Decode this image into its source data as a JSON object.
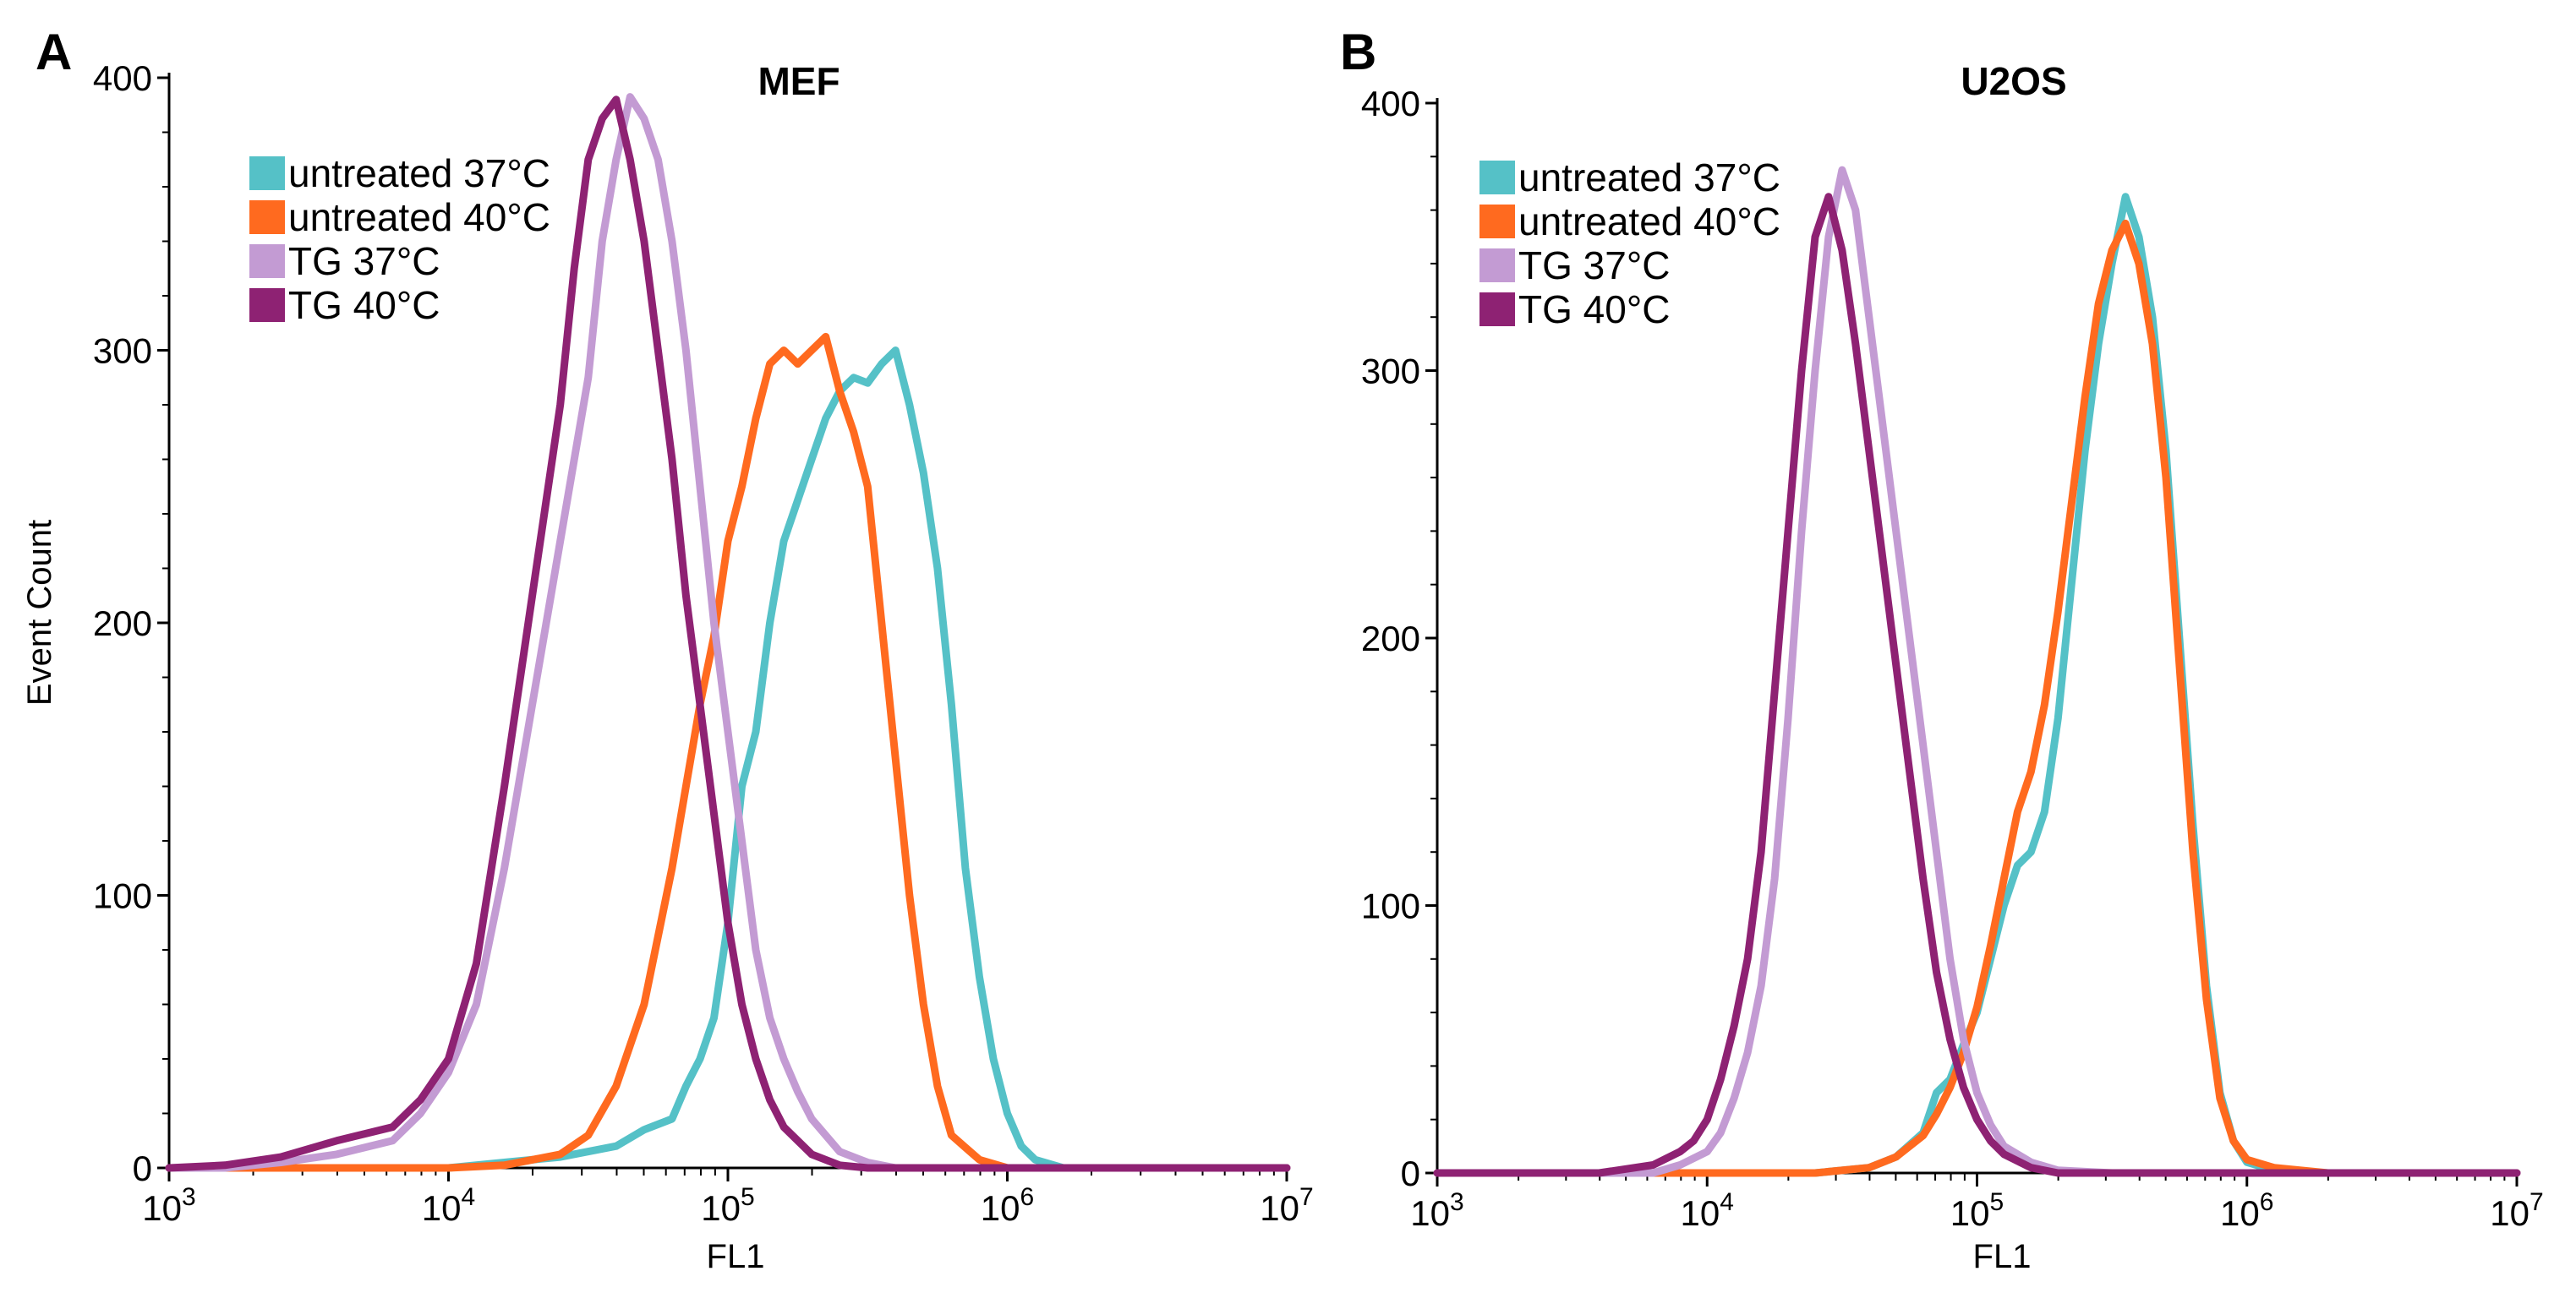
{
  "chart_data": [
    {
      "panel": "A",
      "type": "line",
      "title": "MEF",
      "xlabel": "FL1",
      "ylabel": "Event Count",
      "x_scale": "log",
      "xlim": [
        1000,
        10000000
      ],
      "ylim": [
        0,
        400
      ],
      "x_ticks": [
        {
          "base": "10",
          "exp": "3"
        },
        {
          "base": "10",
          "exp": "4"
        },
        {
          "base": "10",
          "exp": "5"
        },
        {
          "base": "10",
          "exp": "6"
        },
        {
          "base": "10",
          "exp": "7"
        }
      ],
      "y_ticks": [
        "0",
        "100",
        "200",
        "300",
        "400"
      ],
      "legend_position": "top-left",
      "series": [
        {
          "name": "untreated 37°C",
          "color": "#55c1c7",
          "points": [
            [
              3.0,
              0
            ],
            [
              4.0,
              0
            ],
            [
              4.2,
              2
            ],
            [
              4.4,
              4
            ],
            [
              4.6,
              8
            ],
            [
              4.7,
              14
            ],
            [
              4.8,
              18
            ],
            [
              4.85,
              30
            ],
            [
              4.9,
              40
            ],
            [
              4.95,
              55
            ],
            [
              5.0,
              90
            ],
            [
              5.05,
              140
            ],
            [
              5.1,
              160
            ],
            [
              5.15,
              200
            ],
            [
              5.2,
              230
            ],
            [
              5.25,
              245
            ],
            [
              5.3,
              260
            ],
            [
              5.35,
              275
            ],
            [
              5.4,
              285
            ],
            [
              5.45,
              290
            ],
            [
              5.5,
              288
            ],
            [
              5.55,
              295
            ],
            [
              5.6,
              300
            ],
            [
              5.65,
              280
            ],
            [
              5.7,
              255
            ],
            [
              5.75,
              220
            ],
            [
              5.8,
              170
            ],
            [
              5.85,
              110
            ],
            [
              5.9,
              70
            ],
            [
              5.95,
              40
            ],
            [
              6.0,
              20
            ],
            [
              6.05,
              8
            ],
            [
              6.1,
              3
            ],
            [
              6.2,
              0
            ],
            [
              7.0,
              0
            ]
          ]
        },
        {
          "name": "untreated 40°C",
          "color": "#ff6a1f",
          "points": [
            [
              3.0,
              0
            ],
            [
              4.0,
              0
            ],
            [
              4.2,
              1
            ],
            [
              4.4,
              5
            ],
            [
              4.5,
              12
            ],
            [
              4.6,
              30
            ],
            [
              4.7,
              60
            ],
            [
              4.8,
              110
            ],
            [
              4.85,
              140
            ],
            [
              4.9,
              170
            ],
            [
              4.95,
              195
            ],
            [
              5.0,
              230
            ],
            [
              5.05,
              250
            ],
            [
              5.1,
              275
            ],
            [
              5.15,
              295
            ],
            [
              5.2,
              300
            ],
            [
              5.25,
              295
            ],
            [
              5.3,
              300
            ],
            [
              5.35,
              305
            ],
            [
              5.4,
              285
            ],
            [
              5.45,
              270
            ],
            [
              5.5,
              250
            ],
            [
              5.55,
              200
            ],
            [
              5.6,
              150
            ],
            [
              5.65,
              100
            ],
            [
              5.7,
              60
            ],
            [
              5.75,
              30
            ],
            [
              5.8,
              12
            ],
            [
              5.9,
              3
            ],
            [
              6.0,
              0
            ],
            [
              7.0,
              0
            ]
          ]
        },
        {
          "name": "TG 37°C",
          "color": "#c39bd3",
          "points": [
            [
              3.0,
              0
            ],
            [
              3.2,
              0
            ],
            [
              3.4,
              2
            ],
            [
              3.6,
              5
            ],
            [
              3.8,
              10
            ],
            [
              3.9,
              20
            ],
            [
              4.0,
              35
            ],
            [
              4.1,
              60
            ],
            [
              4.2,
              110
            ],
            [
              4.3,
              170
            ],
            [
              4.4,
              230
            ],
            [
              4.5,
              290
            ],
            [
              4.55,
              340
            ],
            [
              4.6,
              370
            ],
            [
              4.65,
              393
            ],
            [
              4.7,
              385
            ],
            [
              4.75,
              370
            ],
            [
              4.8,
              340
            ],
            [
              4.85,
              300
            ],
            [
              4.9,
              250
            ],
            [
              4.95,
              200
            ],
            [
              5.0,
              160
            ],
            [
              5.05,
              120
            ],
            [
              5.1,
              80
            ],
            [
              5.15,
              55
            ],
            [
              5.2,
              40
            ],
            [
              5.25,
              28
            ],
            [
              5.3,
              18
            ],
            [
              5.4,
              6
            ],
            [
              5.5,
              2
            ],
            [
              5.6,
              0
            ],
            [
              7.0,
              0
            ]
          ]
        },
        {
          "name": "TG 40°C",
          "color": "#8e2273",
          "points": [
            [
              3.0,
              0
            ],
            [
              3.2,
              1
            ],
            [
              3.4,
              4
            ],
            [
              3.6,
              10
            ],
            [
              3.8,
              15
            ],
            [
              3.9,
              25
            ],
            [
              4.0,
              40
            ],
            [
              4.1,
              75
            ],
            [
              4.2,
              140
            ],
            [
              4.3,
              210
            ],
            [
              4.4,
              280
            ],
            [
              4.45,
              330
            ],
            [
              4.5,
              370
            ],
            [
              4.55,
              385
            ],
            [
              4.6,
              392
            ],
            [
              4.65,
              370
            ],
            [
              4.7,
              340
            ],
            [
              4.75,
              300
            ],
            [
              4.8,
              260
            ],
            [
              4.85,
              210
            ],
            [
              4.9,
              170
            ],
            [
              4.95,
              130
            ],
            [
              5.0,
              90
            ],
            [
              5.05,
              60
            ],
            [
              5.1,
              40
            ],
            [
              5.15,
              25
            ],
            [
              5.2,
              15
            ],
            [
              5.3,
              5
            ],
            [
              5.4,
              1
            ],
            [
              5.5,
              0
            ],
            [
              7.0,
              0
            ]
          ]
        }
      ]
    },
    {
      "panel": "B",
      "type": "line",
      "title": "U2OS",
      "xlabel": "FL1",
      "ylabel": "",
      "x_scale": "log",
      "xlim": [
        1000,
        10000000
      ],
      "ylim": [
        0,
        400
      ],
      "x_ticks": [
        {
          "base": "10",
          "exp": "3"
        },
        {
          "base": "10",
          "exp": "4"
        },
        {
          "base": "10",
          "exp": "5"
        },
        {
          "base": "10",
          "exp": "6"
        },
        {
          "base": "10",
          "exp": "7"
        }
      ],
      "y_ticks": [
        "0",
        "100",
        "200",
        "300",
        "400"
      ],
      "legend_position": "top-left",
      "series": [
        {
          "name": "untreated 37°C",
          "color": "#55c1c7",
          "points": [
            [
              3.0,
              0
            ],
            [
              4.4,
              0
            ],
            [
              4.6,
              2
            ],
            [
              4.7,
              6
            ],
            [
              4.8,
              15
            ],
            [
              4.85,
              30
            ],
            [
              4.9,
              35
            ],
            [
              4.95,
              48
            ],
            [
              5.0,
              60
            ],
            [
              5.05,
              80
            ],
            [
              5.1,
              100
            ],
            [
              5.15,
              115
            ],
            [
              5.2,
              120
            ],
            [
              5.25,
              135
            ],
            [
              5.3,
              170
            ],
            [
              5.35,
              220
            ],
            [
              5.4,
              270
            ],
            [
              5.45,
              310
            ],
            [
              5.5,
              340
            ],
            [
              5.55,
              365
            ],
            [
              5.6,
              350
            ],
            [
              5.65,
              320
            ],
            [
              5.7,
              270
            ],
            [
              5.75,
              200
            ],
            [
              5.8,
              130
            ],
            [
              5.85,
              70
            ],
            [
              5.9,
              30
            ],
            [
              5.95,
              12
            ],
            [
              6.0,
              4
            ],
            [
              6.1,
              1
            ],
            [
              6.3,
              0
            ],
            [
              7.0,
              0
            ]
          ]
        },
        {
          "name": "untreated 40°C",
          "color": "#ff6a1f",
          "points": [
            [
              3.0,
              0
            ],
            [
              4.4,
              0
            ],
            [
              4.6,
              2
            ],
            [
              4.7,
              6
            ],
            [
              4.8,
              14
            ],
            [
              4.85,
              22
            ],
            [
              4.9,
              32
            ],
            [
              4.95,
              45
            ],
            [
              5.0,
              62
            ],
            [
              5.05,
              85
            ],
            [
              5.1,
              110
            ],
            [
              5.15,
              135
            ],
            [
              5.2,
              150
            ],
            [
              5.25,
              175
            ],
            [
              5.3,
              210
            ],
            [
              5.35,
              250
            ],
            [
              5.4,
              290
            ],
            [
              5.45,
              325
            ],
            [
              5.5,
              345
            ],
            [
              5.55,
              355
            ],
            [
              5.6,
              340
            ],
            [
              5.65,
              310
            ],
            [
              5.7,
              260
            ],
            [
              5.75,
              190
            ],
            [
              5.8,
              120
            ],
            [
              5.85,
              65
            ],
            [
              5.9,
              28
            ],
            [
              5.95,
              12
            ],
            [
              6.0,
              5
            ],
            [
              6.1,
              2
            ],
            [
              6.3,
              0
            ],
            [
              7.0,
              0
            ]
          ]
        },
        {
          "name": "TG 37°C",
          "color": "#c39bd3",
          "points": [
            [
              3.0,
              0
            ],
            [
              3.8,
              0
            ],
            [
              3.9,
              3
            ],
            [
              4.0,
              8
            ],
            [
              4.05,
              15
            ],
            [
              4.1,
              28
            ],
            [
              4.15,
              45
            ],
            [
              4.2,
              70
            ],
            [
              4.25,
              110
            ],
            [
              4.3,
              170
            ],
            [
              4.35,
              240
            ],
            [
              4.4,
              300
            ],
            [
              4.45,
              350
            ],
            [
              4.5,
              375
            ],
            [
              4.55,
              360
            ],
            [
              4.6,
              320
            ],
            [
              4.65,
              280
            ],
            [
              4.7,
              240
            ],
            [
              4.75,
              200
            ],
            [
              4.8,
              160
            ],
            [
              4.85,
              120
            ],
            [
              4.9,
              80
            ],
            [
              4.95,
              50
            ],
            [
              5.0,
              30
            ],
            [
              5.05,
              18
            ],
            [
              5.1,
              10
            ],
            [
              5.2,
              4
            ],
            [
              5.3,
              1
            ],
            [
              5.5,
              0
            ],
            [
              7.0,
              0
            ]
          ]
        },
        {
          "name": "TG 40°C",
          "color": "#8e2273",
          "points": [
            [
              3.0,
              0
            ],
            [
              3.6,
              0
            ],
            [
              3.8,
              3
            ],
            [
              3.9,
              8
            ],
            [
              3.95,
              12
            ],
            [
              4.0,
              20
            ],
            [
              4.05,
              35
            ],
            [
              4.1,
              55
            ],
            [
              4.15,
              80
            ],
            [
              4.2,
              120
            ],
            [
              4.25,
              180
            ],
            [
              4.3,
              240
            ],
            [
              4.35,
              300
            ],
            [
              4.4,
              350
            ],
            [
              4.45,
              365
            ],
            [
              4.5,
              345
            ],
            [
              4.55,
              310
            ],
            [
              4.6,
              270
            ],
            [
              4.65,
              230
            ],
            [
              4.7,
              190
            ],
            [
              4.75,
              150
            ],
            [
              4.8,
              110
            ],
            [
              4.85,
              75
            ],
            [
              4.9,
              50
            ],
            [
              4.95,
              32
            ],
            [
              5.0,
              20
            ],
            [
              5.05,
              12
            ],
            [
              5.1,
              7
            ],
            [
              5.2,
              2
            ],
            [
              5.3,
              0
            ],
            [
              7.0,
              0
            ]
          ]
        }
      ]
    }
  ]
}
